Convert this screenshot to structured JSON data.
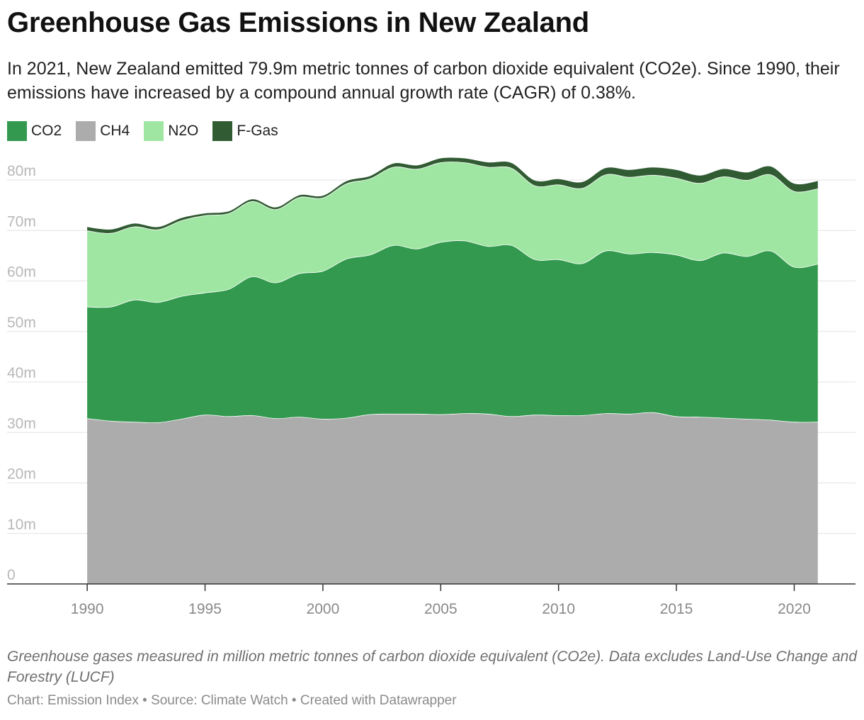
{
  "header": {
    "title": "Greenhouse Gas Emissions in New Zealand",
    "subtitle": "In 2021, New Zealand emitted 79.9m metric tonnes of carbon dioxide equivalent (CO2e). Since 1990, their emissions have increased by a compound annual growth rate (CAGR) of 0.38%."
  },
  "legend": [
    {
      "label": "CO2",
      "color": "#33994f"
    },
    {
      "label": "CH4",
      "color": "#acacac"
    },
    {
      "label": "N2O",
      "color": "#a0e6a3"
    },
    {
      "label": "F-Gas",
      "color": "#315b33"
    }
  ],
  "chart_data": {
    "type": "area",
    "stacked": true,
    "x": [
      1990,
      1991,
      1992,
      1993,
      1994,
      1995,
      1996,
      1997,
      1998,
      1999,
      2000,
      2001,
      2002,
      2003,
      2004,
      2005,
      2006,
      2007,
      2008,
      2009,
      2010,
      2011,
      2012,
      2013,
      2014,
      2015,
      2016,
      2017,
      2018,
      2019,
      2020,
      2021
    ],
    "series": [
      {
        "name": "CH4",
        "color": "#acacac",
        "values": [
          32.8,
          32.3,
          32.1,
          32.0,
          32.7,
          33.5,
          33.2,
          33.4,
          32.8,
          33.1,
          32.7,
          32.9,
          33.6,
          33.7,
          33.7,
          33.6,
          33.8,
          33.7,
          33.2,
          33.5,
          33.4,
          33.4,
          33.8,
          33.7,
          34.0,
          33.2,
          33.1,
          32.9,
          32.7,
          32.5,
          32.1,
          32.1
        ]
      },
      {
        "name": "CO2",
        "color": "#33994f",
        "values": [
          22.1,
          22.6,
          24.2,
          23.8,
          24.3,
          24.2,
          25.2,
          27.5,
          26.9,
          28.4,
          29.3,
          31.5,
          31.6,
          33.4,
          32.7,
          34.1,
          34.2,
          33.2,
          33.9,
          30.8,
          30.9,
          30.1,
          32.2,
          31.7,
          31.7,
          32.0,
          31.0,
          32.7,
          32.2,
          33.5,
          30.7,
          31.3
        ]
      },
      {
        "name": "N2O",
        "color": "#a0e6a3",
        "values": [
          15.1,
          14.6,
          14.5,
          14.4,
          15.0,
          15.3,
          15.0,
          14.9,
          14.5,
          15.1,
          14.5,
          14.9,
          15.1,
          15.5,
          15.8,
          15.8,
          15.5,
          15.7,
          15.3,
          14.6,
          14.8,
          14.9,
          15.1,
          15.2,
          15.3,
          15.2,
          15.3,
          15.1,
          15.1,
          15.1,
          15.0,
          14.9
        ]
      },
      {
        "name": "F-Gas",
        "color": "#315b33",
        "values": [
          0.8,
          0.8,
          0.7,
          0.6,
          0.6,
          0.5,
          0.5,
          0.5,
          0.5,
          0.5,
          0.5,
          0.6,
          0.6,
          0.8,
          0.8,
          0.9,
          0.9,
          1.0,
          1.1,
          1.1,
          1.2,
          1.3,
          1.4,
          1.5,
          1.6,
          1.7,
          1.6,
          1.6,
          1.6,
          1.7,
          1.6,
          1.6
        ]
      }
    ],
    "x_ticks": [
      1990,
      1995,
      2000,
      2005,
      2010,
      2015,
      2020
    ],
    "y_ticks": [
      0,
      10,
      20,
      30,
      40,
      50,
      60,
      70,
      80
    ],
    "y_tick_labels": [
      "0",
      "10m",
      "20m",
      "30m",
      "40m",
      "50m",
      "60m",
      "70m",
      "80m"
    ],
    "xlim": [
      1986.6,
      2022.6
    ],
    "ylim": [
      0,
      80
    ],
    "grid": true,
    "legend_position": "top-left"
  },
  "footer": {
    "notes": "Greenhouse gases measured in million metric tonnes of carbon dioxide equivalent (CO2e). Data excludes Land-Use Change and Forestry (LUCF)",
    "byline": "Chart: Emission Index • Source: Climate Watch • Created with Datawrapper"
  }
}
